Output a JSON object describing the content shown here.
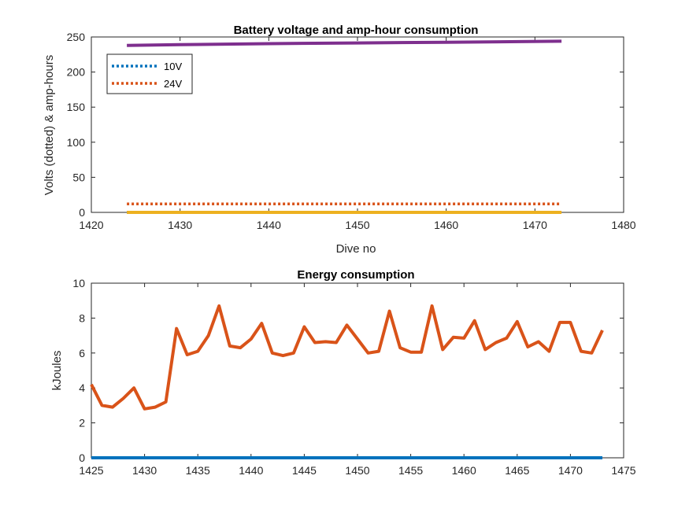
{
  "chart_data": [
    {
      "type": "line",
      "title": "Battery voltage and amp-hour consumption",
      "xlabel": "Dive no",
      "ylabel": "Volts (dotted) & amp-hours",
      "xlim": [
        1420,
        1480
      ],
      "ylim": [
        0,
        250
      ],
      "xticks": [
        1420,
        1430,
        1440,
        1450,
        1460,
        1470,
        1480
      ],
      "yticks": [
        0,
        50,
        100,
        150,
        200,
        250
      ],
      "legend": {
        "placement": "top-left",
        "entries": [
          "10V",
          "24V"
        ]
      },
      "series": [
        {
          "name": "10V",
          "style": "dotted",
          "color": "#0072BD",
          "x": [
            1424,
            1473
          ],
          "values": [
            0,
            0
          ]
        },
        {
          "name": "24V",
          "style": "dotted",
          "color": "#D95319",
          "x": [
            1424,
            1473
          ],
          "values": [
            12,
            12
          ]
        },
        {
          "style": "solid",
          "color": "#EDB120",
          "x": [
            1424,
            1473
          ],
          "values": [
            0,
            0
          ]
        },
        {
          "style": "solid",
          "color": "#7E2F8E",
          "x": [
            1424,
            1430,
            1440,
            1450,
            1460,
            1473
          ],
          "values": [
            238,
            239,
            240.5,
            241.5,
            242.5,
            244
          ]
        }
      ]
    },
    {
      "type": "line",
      "title": "Energy consumption",
      "xlabel": "",
      "ylabel": "kJoules",
      "xlim": [
        1425,
        1475
      ],
      "ylim": [
        0,
        10
      ],
      "xticks": [
        1425,
        1430,
        1435,
        1440,
        1445,
        1450,
        1455,
        1460,
        1465,
        1470,
        1475
      ],
      "yticks": [
        0,
        2,
        4,
        6,
        8,
        10
      ],
      "series": [
        {
          "style": "solid",
          "color": "#0072BD",
          "x": [
            1425,
            1473
          ],
          "values": [
            0,
            0
          ]
        },
        {
          "style": "solid",
          "color": "#D95319",
          "x": [
            1425,
            1426,
            1427,
            1428,
            1429,
            1430,
            1431,
            1432,
            1433,
            1434,
            1435,
            1436,
            1437,
            1438,
            1439,
            1440,
            1441,
            1442,
            1443,
            1444,
            1445,
            1446,
            1447,
            1448,
            1449,
            1450,
            1451,
            1452,
            1453,
            1454,
            1455,
            1456,
            1457,
            1458,
            1459,
            1460,
            1461,
            1462,
            1463,
            1464,
            1465,
            1466,
            1467,
            1468,
            1469,
            1470,
            1471,
            1472,
            1473
          ],
          "values": [
            4.2,
            3.0,
            2.9,
            3.4,
            4.0,
            2.8,
            2.9,
            3.2,
            7.4,
            5.9,
            6.1,
            7.0,
            8.7,
            6.4,
            6.3,
            6.8,
            7.7,
            6.0,
            5.85,
            6.0,
            7.5,
            6.6,
            6.65,
            6.6,
            7.6,
            6.8,
            6.0,
            6.1,
            8.4,
            6.3,
            6.05,
            6.05,
            8.7,
            6.2,
            6.9,
            6.85,
            7.85,
            6.2,
            6.6,
            6.85,
            7.8,
            6.35,
            6.65,
            6.1,
            7.75,
            7.75,
            6.1,
            6.0,
            7.3
          ]
        }
      ]
    }
  ]
}
